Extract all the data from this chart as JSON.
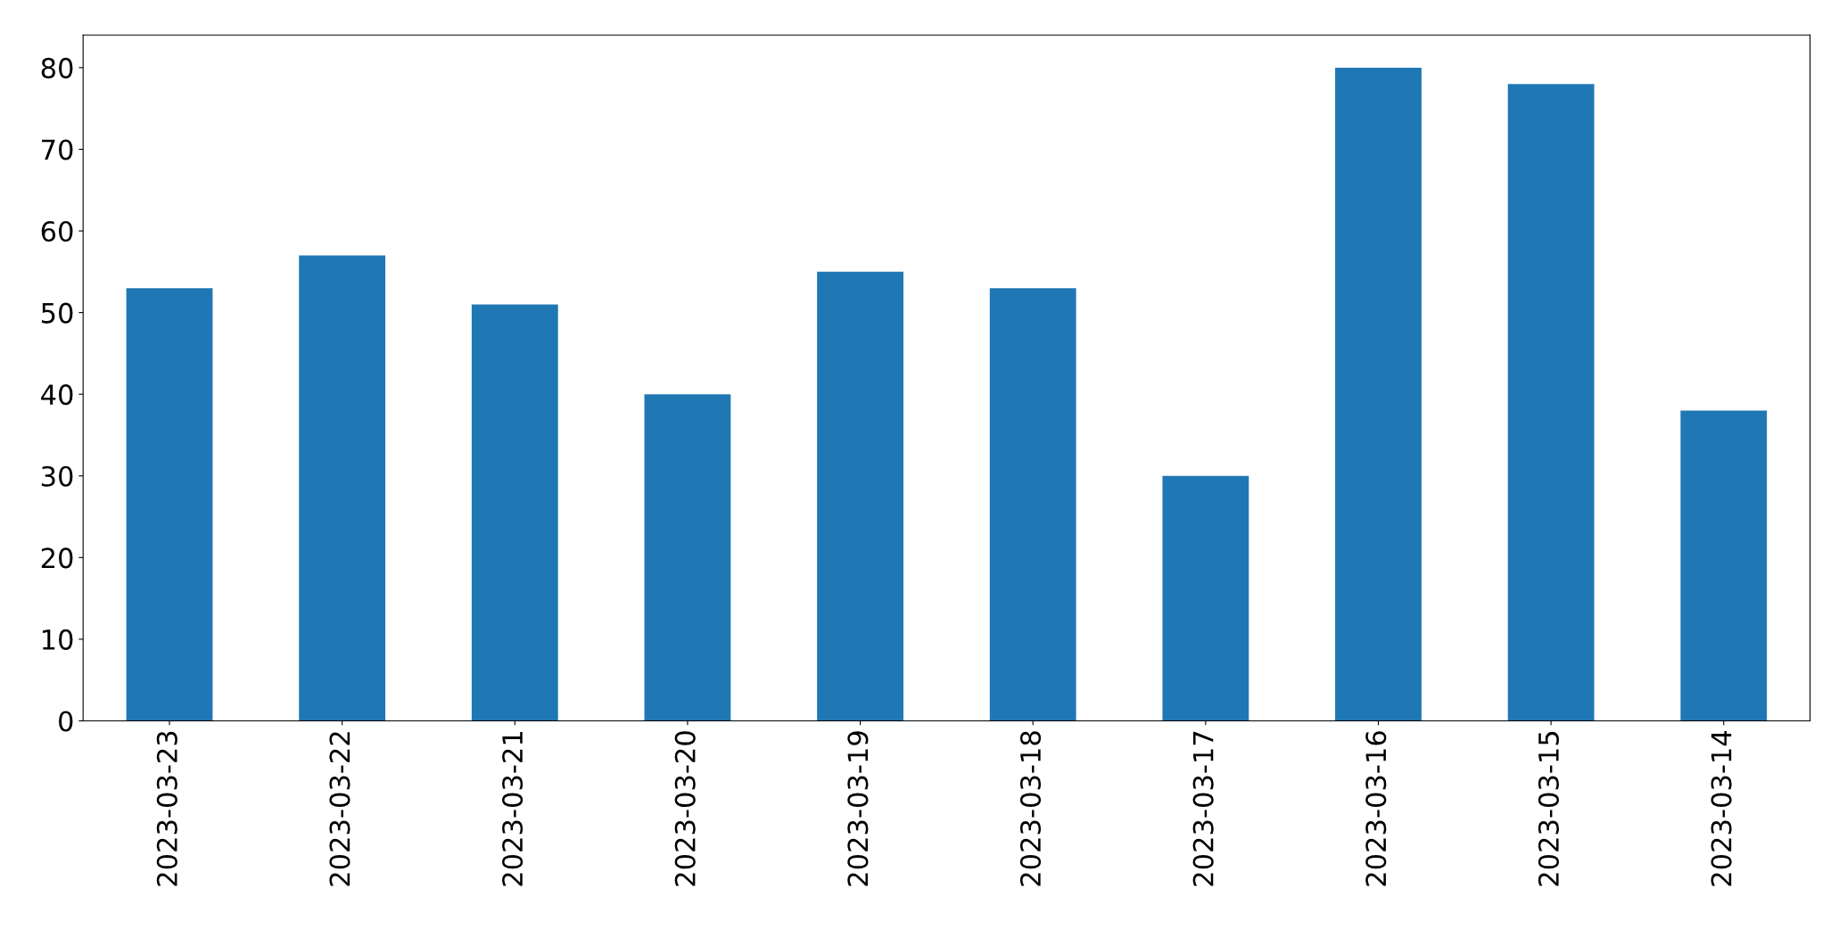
{
  "chart_data": {
    "type": "bar",
    "categories": [
      "2023-03-23",
      "2023-03-22",
      "2023-03-21",
      "2023-03-20",
      "2023-03-19",
      "2023-03-18",
      "2023-03-17",
      "2023-03-16",
      "2023-03-15",
      "2023-03-14"
    ],
    "values": [
      53,
      57,
      51,
      40,
      55,
      53,
      30,
      80,
      78,
      38
    ],
    "color": "#1f77b4",
    "ylim": [
      0,
      84
    ],
    "yticks": [
      0,
      10,
      20,
      30,
      40,
      50,
      60,
      70,
      80
    ],
    "grid": false
  }
}
